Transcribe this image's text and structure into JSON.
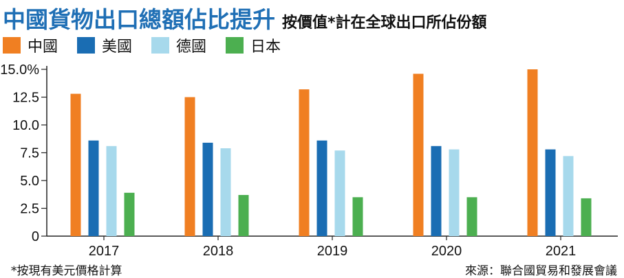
{
  "title": "中國貨物出口總額佔比提升",
  "subtitle": "按價值*計在全球出口所佔份額",
  "footnote": "*按現有美元價格計算",
  "source": "來源：聯合國貿易和發展會議",
  "chart_data": {
    "type": "bar",
    "categories": [
      "2017",
      "2018",
      "2019",
      "2020",
      "2021"
    ],
    "series": [
      {
        "name": "中國",
        "color": "#f07f22",
        "values": [
          12.8,
          12.5,
          13.2,
          14.6,
          15.0
        ]
      },
      {
        "name": "美國",
        "color": "#1a6db3",
        "values": [
          8.6,
          8.4,
          8.6,
          8.1,
          7.8
        ]
      },
      {
        "name": "德國",
        "color": "#a7d9ec",
        "values": [
          8.1,
          7.9,
          7.7,
          7.8,
          7.2
        ]
      },
      {
        "name": "日本",
        "color": "#4caf50",
        "values": [
          3.9,
          3.7,
          3.5,
          3.5,
          3.4
        ]
      }
    ],
    "yticks": [
      "0",
      "2.5",
      "5.0",
      "7.5",
      "10.0",
      "12.5",
      "15.0%"
    ],
    "ylim": [
      0,
      15
    ],
    "grid": false,
    "legend_position": "top-left"
  }
}
